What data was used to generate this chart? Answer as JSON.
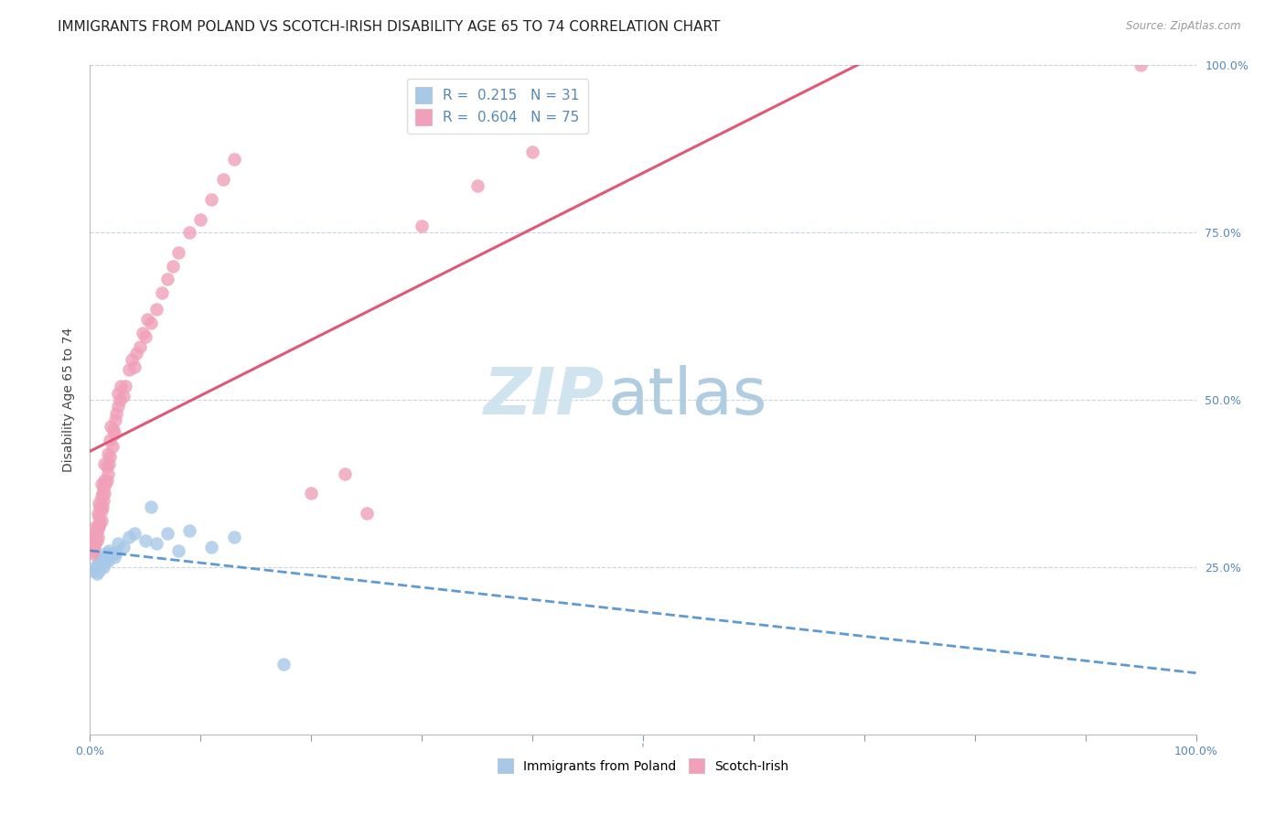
{
  "title": "IMMIGRANTS FROM POLAND VS SCOTCH-IRISH DISABILITY AGE 65 TO 74 CORRELATION CHART",
  "source": "Source: ZipAtlas.com",
  "ylabel": "Disability Age 65 to 74",
  "poland_R": 0.215,
  "poland_N": 31,
  "scotch_R": 0.604,
  "scotch_N": 75,
  "poland_color": "#a8c8e8",
  "scotch_color": "#f0a0b8",
  "poland_line_color": "#4488cc",
  "scotch_line_color": "#e05878",
  "background_color": "#ffffff",
  "grid_color": "#c8d4de",
  "tick_color": "#8899aa",
  "label_color": "#5588bb",
  "poland_x": [
    0.003,
    0.005,
    0.006,
    0.007,
    0.008,
    0.009,
    0.01,
    0.011,
    0.012,
    0.013,
    0.014,
    0.015,
    0.016,
    0.017,
    0.018,
    0.02,
    0.022,
    0.024,
    0.025,
    0.03,
    0.035,
    0.04,
    0.05,
    0.055,
    0.06,
    0.07,
    0.08,
    0.09,
    0.11,
    0.13,
    0.175
  ],
  "poland_y": [
    0.245,
    0.25,
    0.24,
    0.255,
    0.245,
    0.26,
    0.255,
    0.265,
    0.25,
    0.255,
    0.27,
    0.265,
    0.26,
    0.275,
    0.27,
    0.268,
    0.265,
    0.272,
    0.285,
    0.28,
    0.295,
    0.3,
    0.29,
    0.34,
    0.285,
    0.3,
    0.275,
    0.305,
    0.28,
    0.295,
    0.105
  ],
  "scotch_x": [
    0.002,
    0.003,
    0.003,
    0.004,
    0.004,
    0.005,
    0.005,
    0.005,
    0.006,
    0.006,
    0.007,
    0.007,
    0.007,
    0.008,
    0.008,
    0.008,
    0.009,
    0.009,
    0.01,
    0.01,
    0.01,
    0.01,
    0.011,
    0.011,
    0.012,
    0.012,
    0.013,
    0.013,
    0.013,
    0.014,
    0.015,
    0.015,
    0.016,
    0.016,
    0.017,
    0.018,
    0.018,
    0.019,
    0.02,
    0.021,
    0.022,
    0.023,
    0.024,
    0.025,
    0.025,
    0.027,
    0.028,
    0.03,
    0.032,
    0.035,
    0.038,
    0.04,
    0.042,
    0.045,
    0.048,
    0.05,
    0.052,
    0.055,
    0.06,
    0.065,
    0.07,
    0.075,
    0.08,
    0.09,
    0.1,
    0.11,
    0.12,
    0.13,
    0.2,
    0.23,
    0.25,
    0.3,
    0.35,
    0.4,
    0.95
  ],
  "scotch_y": [
    0.27,
    0.275,
    0.29,
    0.28,
    0.295,
    0.285,
    0.295,
    0.31,
    0.29,
    0.305,
    0.295,
    0.31,
    0.33,
    0.31,
    0.325,
    0.345,
    0.315,
    0.34,
    0.32,
    0.335,
    0.355,
    0.375,
    0.34,
    0.36,
    0.35,
    0.37,
    0.36,
    0.38,
    0.405,
    0.375,
    0.38,
    0.4,
    0.39,
    0.42,
    0.405,
    0.415,
    0.44,
    0.46,
    0.43,
    0.455,
    0.45,
    0.47,
    0.48,
    0.49,
    0.51,
    0.5,
    0.52,
    0.505,
    0.52,
    0.545,
    0.56,
    0.55,
    0.57,
    0.58,
    0.6,
    0.595,
    0.62,
    0.615,
    0.635,
    0.66,
    0.68,
    0.7,
    0.72,
    0.75,
    0.77,
    0.8,
    0.83,
    0.86,
    0.36,
    0.39,
    0.33,
    0.76,
    0.82,
    0.87,
    1.0
  ],
  "xlim": [
    0,
    1
  ],
  "ylim": [
    0,
    1
  ],
  "xticks": [
    0,
    0.1,
    0.2,
    0.3,
    0.4,
    0.5,
    0.6,
    0.7,
    0.8,
    0.9,
    1.0
  ],
  "yticks": [
    0.0,
    0.25,
    0.5,
    0.75,
    1.0
  ],
  "title_fontsize": 11,
  "tick_fontsize": 9,
  "legend_fontsize": 11,
  "watermark_zip_color": "#d0e4f0",
  "watermark_atlas_color": "#b0cce0"
}
